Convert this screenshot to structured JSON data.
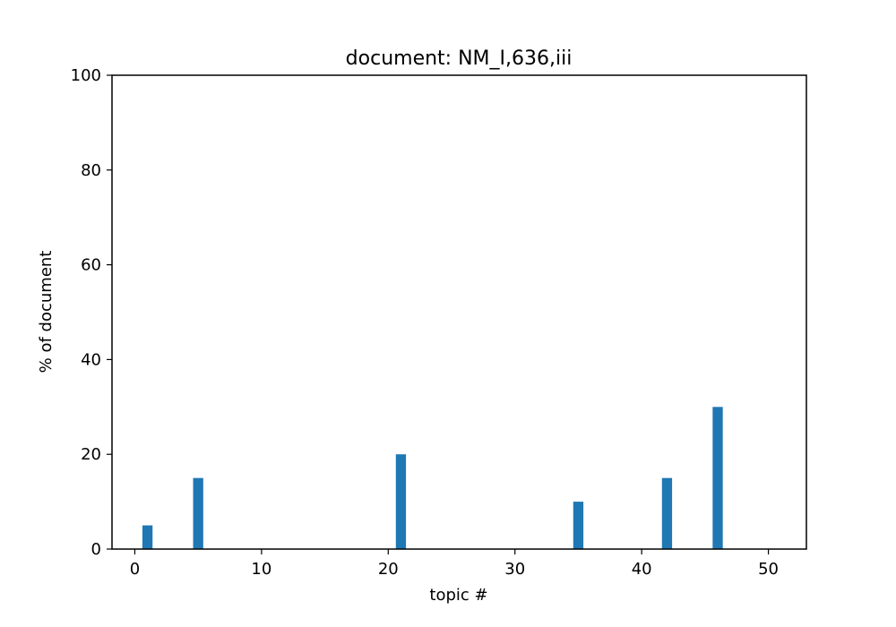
{
  "chart_data": {
    "type": "bar",
    "title": "document: NM_I,636,iii",
    "xlabel": "topic #",
    "ylabel": "% of document",
    "xlim": [
      -1.8,
      53.0
    ],
    "ylim": [
      0,
      100
    ],
    "xticks": [
      0,
      10,
      20,
      30,
      40,
      50
    ],
    "yticks": [
      0,
      20,
      40,
      60,
      80,
      100
    ],
    "bar_width": 0.8,
    "grid": false,
    "legend": "none",
    "color": "#1f77b4",
    "series": [
      {
        "x": [
          1,
          5,
          21,
          35,
          42,
          46
        ],
        "values": [
          5,
          15,
          20,
          10,
          15,
          30
        ]
      }
    ]
  }
}
